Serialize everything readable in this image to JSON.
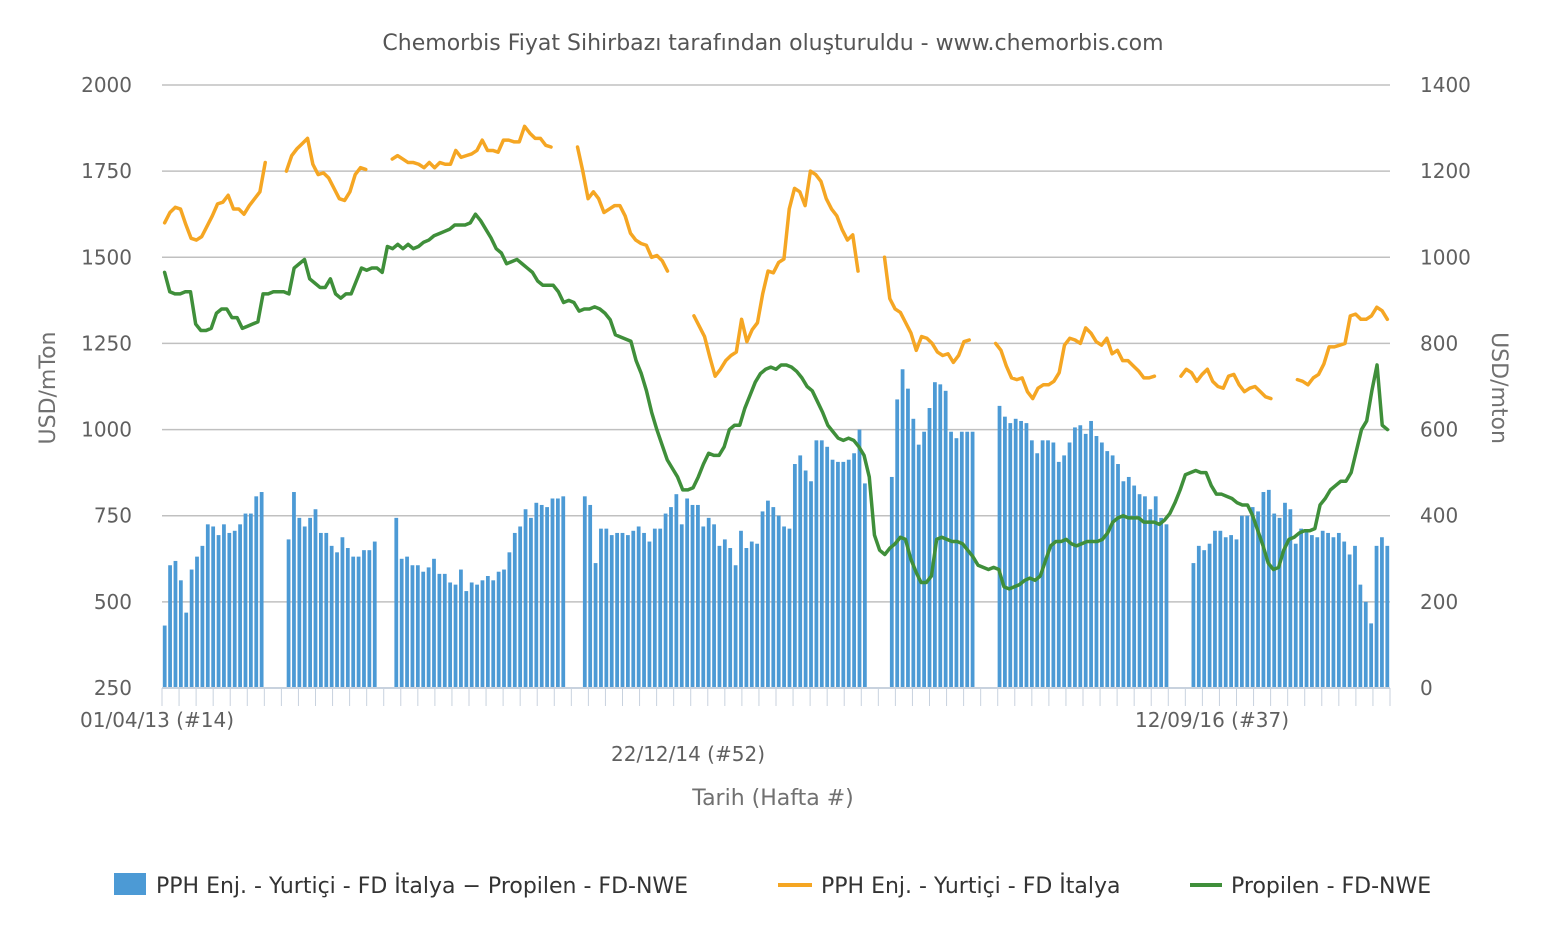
{
  "chart_data": {
    "type": "bar+line",
    "title": "Chemorbis Fiyat Sihirbazı tarafından oluşturuldu - www.chemorbis.com",
    "xlabel": "Tarih (Hafta #)",
    "ylabel_left": "USD/mTon",
    "ylabel_right": "USD/mton",
    "ylim_left": [
      250,
      2000
    ],
    "ylim_right": [
      0,
      1400
    ],
    "yticks_left": [
      "2000",
      "1750",
      "1500",
      "1250",
      "1000",
      "750",
      "500",
      "250"
    ],
    "yticks_right": [
      "1400",
      "1200",
      "1000",
      "800",
      "600",
      "400",
      "200",
      "0"
    ],
    "x_tick_labels": [
      "01/04/13 (#14)",
      "22/12/14 (#52)",
      "12/09/16 (#37)"
    ],
    "grid": true,
    "legend_position": "bottom",
    "colors": {
      "bar": "#4c9ad5",
      "pph_line": "#f5a623",
      "propylene_line": "#3f8f3a"
    },
    "series": [
      {
        "name": "PPH Enj. - Yurtiçi - FD İtalya − Propilen - FD-NWE",
        "type": "bar",
        "axis": "right",
        "values": [
          145,
          285,
          295,
          250,
          175,
          275,
          305,
          330,
          380,
          375,
          355,
          380,
          360,
          365,
          380,
          405,
          405,
          445,
          455,
          null,
          null,
          null,
          null,
          345,
          455,
          395,
          375,
          395,
          415,
          360,
          360,
          330,
          315,
          350,
          325,
          305,
          305,
          320,
          320,
          340,
          null,
          null,
          null,
          395,
          300,
          305,
          285,
          285,
          270,
          280,
          300,
          265,
          265,
          245,
          240,
          275,
          225,
          245,
          240,
          250,
          260,
          250,
          270,
          275,
          315,
          360,
          375,
          415,
          395,
          430,
          425,
          420,
          440,
          440,
          445,
          null,
          null,
          null,
          445,
          425,
          290,
          370,
          370,
          355,
          360,
          360,
          355,
          365,
          375,
          360,
          340,
          370,
          370,
          405,
          420,
          450,
          380,
          440,
          425,
          425,
          375,
          395,
          380,
          330,
          345,
          325,
          285,
          365,
          325,
          340,
          335,
          410,
          435,
          420,
          400,
          375,
          370,
          520,
          540,
          505,
          480,
          575,
          575,
          560,
          530,
          525,
          525,
          530,
          545,
          600,
          475,
          null,
          null,
          null,
          null,
          490,
          670,
          740,
          695,
          625,
          565,
          595,
          650,
          710,
          705,
          690,
          595,
          580,
          595,
          595,
          595,
          null,
          null,
          null,
          null,
          655,
          630,
          615,
          625,
          620,
          615,
          575,
          545,
          575,
          575,
          570,
          525,
          540,
          570,
          605,
          610,
          590,
          620,
          585,
          570,
          550,
          540,
          520,
          480,
          490,
          470,
          450,
          445,
          415,
          445,
          395,
          380,
          null,
          null,
          null,
          null,
          290,
          330,
          320,
          335,
          365,
          365,
          350,
          355,
          345,
          400,
          400,
          420,
          410,
          455,
          460,
          405,
          395,
          430,
          415,
          335,
          370,
          365,
          355,
          350,
          365,
          360,
          350,
          360,
          340,
          310,
          330,
          240,
          200,
          150,
          330,
          350,
          330
        ]
      },
      {
        "name": "PPH Enj. - Yurtiçi - FD İtalya",
        "type": "line",
        "axis": "left",
        "values": [
          1600,
          1630,
          1645,
          1640,
          1595,
          1555,
          1550,
          1560,
          1590,
          1620,
          1655,
          1660,
          1680,
          1640,
          1640,
          1625,
          1650,
          1670,
          1690,
          1775,
          null,
          null,
          null,
          1750,
          1795,
          1815,
          1830,
          1845,
          1770,
          1740,
          1745,
          1730,
          1700,
          1670,
          1665,
          1690,
          1740,
          1760,
          1755,
          null,
          null,
          null,
          null,
          1785,
          1795,
          1785,
          1775,
          1775,
          1770,
          1760,
          1775,
          1760,
          1775,
          1770,
          1770,
          1810,
          1790,
          1795,
          1800,
          1810,
          1840,
          1810,
          1810,
          1805,
          1840,
          1840,
          1835,
          1835,
          1880,
          1860,
          1845,
          1845,
          1825,
          1820,
          null,
          null,
          null,
          null,
          1820,
          1750,
          1670,
          1690,
          1670,
          1630,
          1640,
          1650,
          1650,
          1620,
          1570,
          1550,
          1540,
          1535,
          1500,
          1505,
          1490,
          1460,
          null,
          null,
          null,
          null,
          1330,
          1300,
          1270,
          1210,
          1155,
          1175,
          1200,
          1215,
          1225,
          1320,
          1255,
          1290,
          1310,
          1395,
          1460,
          1455,
          1485,
          1495,
          1640,
          1700,
          1690,
          1650,
          1750,
          1740,
          1720,
          1670,
          1640,
          1620,
          1580,
          1550,
          1565,
          1460,
          null,
          null,
          null,
          null,
          1500,
          1380,
          1350,
          1340,
          1310,
          1280,
          1230,
          1270,
          1265,
          1250,
          1225,
          1215,
          1220,
          1195,
          1215,
          1255,
          1260,
          null,
          null,
          null,
          null,
          1250,
          1230,
          1185,
          1150,
          1145,
          1150,
          1110,
          1090,
          1120,
          1130,
          1130,
          1140,
          1165,
          1245,
          1265,
          1260,
          1250,
          1295,
          1280,
          1255,
          1245,
          1265,
          1220,
          1230,
          1200,
          1200,
          1185,
          1170,
          1150,
          1150,
          1155,
          null,
          null,
          null,
          null,
          1155,
          1175,
          1165,
          1140,
          1160,
          1175,
          1140,
          1125,
          1120,
          1155,
          1160,
          1130,
          1110,
          1120,
          1125,
          1110,
          1095,
          1090,
          null,
          null,
          null,
          null,
          1145,
          1140,
          1130,
          1150,
          1160,
          1190,
          1240,
          1240,
          1245,
          1250,
          1330,
          1335,
          1320,
          1320,
          1330,
          1355,
          1345,
          1320
        ]
      },
      {
        "name": "Propilen - FD-NWE",
        "type": "line",
        "axis": "right",
        "values": [
          965,
          920,
          915,
          915,
          920,
          920,
          845,
          830,
          830,
          835,
          870,
          880,
          880,
          860,
          860,
          835,
          840,
          845,
          850,
          915,
          915,
          920,
          920,
          920,
          915,
          975,
          985,
          995,
          950,
          940,
          930,
          930,
          950,
          915,
          905,
          915,
          915,
          945,
          975,
          970,
          975,
          975,
          965,
          1025,
          1020,
          1030,
          1020,
          1030,
          1020,
          1025,
          1035,
          1040,
          1050,
          1055,
          1060,
          1065,
          1075,
          1075,
          1075,
          1080,
          1100,
          1085,
          1065,
          1045,
          1020,
          1010,
          985,
          990,
          995,
          985,
          975,
          965,
          945,
          935,
          935,
          935,
          920,
          895,
          900,
          895,
          875,
          880,
          880,
          885,
          880,
          870,
          855,
          820,
          815,
          810,
          805,
          760,
          730,
          690,
          640,
          600,
          565,
          530,
          510,
          490,
          460,
          460,
          465,
          490,
          520,
          545,
          540,
          540,
          560,
          600,
          610,
          610,
          650,
          680,
          710,
          730,
          740,
          745,
          740,
          750,
          750,
          745,
          735,
          720,
          700,
          690,
          665,
          640,
          610,
          595,
          580,
          575,
          580,
          575,
          560,
          540,
          490,
          355,
          320,
          310,
          325,
          335,
          350,
          345,
          300,
          270,
          245,
          245,
          260,
          345,
          350,
          345,
          340,
          340,
          335,
          320,
          305,
          285,
          280,
          275,
          280,
          275,
          235,
          230,
          235,
          240,
          250,
          255,
          250,
          260,
          295,
          330,
          340,
          340,
          345,
          335,
          330,
          335,
          340,
          340,
          340,
          345,
          360,
          385,
          395,
          400,
          395,
          395,
          395,
          385,
          385,
          385,
          380,
          390,
          405,
          430,
          460,
          495,
          500,
          505,
          500,
          500,
          470,
          450,
          450,
          445,
          440,
          430,
          425,
          425,
          400,
          365,
          330,
          290,
          275,
          280,
          320,
          345,
          350,
          360,
          365,
          365,
          370,
          425,
          440,
          460,
          470,
          480,
          480,
          500,
          550,
          600,
          620,
          690,
          750,
          610,
          600
        ]
      }
    ]
  },
  "legend": {
    "items": [
      "PPH Enj. - Yurtiçi - FD İtalya − Propilen - FD-NWE",
      "PPH Enj. - Yurtiçi - FD İtalya",
      "Propilen - FD-NWE"
    ]
  }
}
